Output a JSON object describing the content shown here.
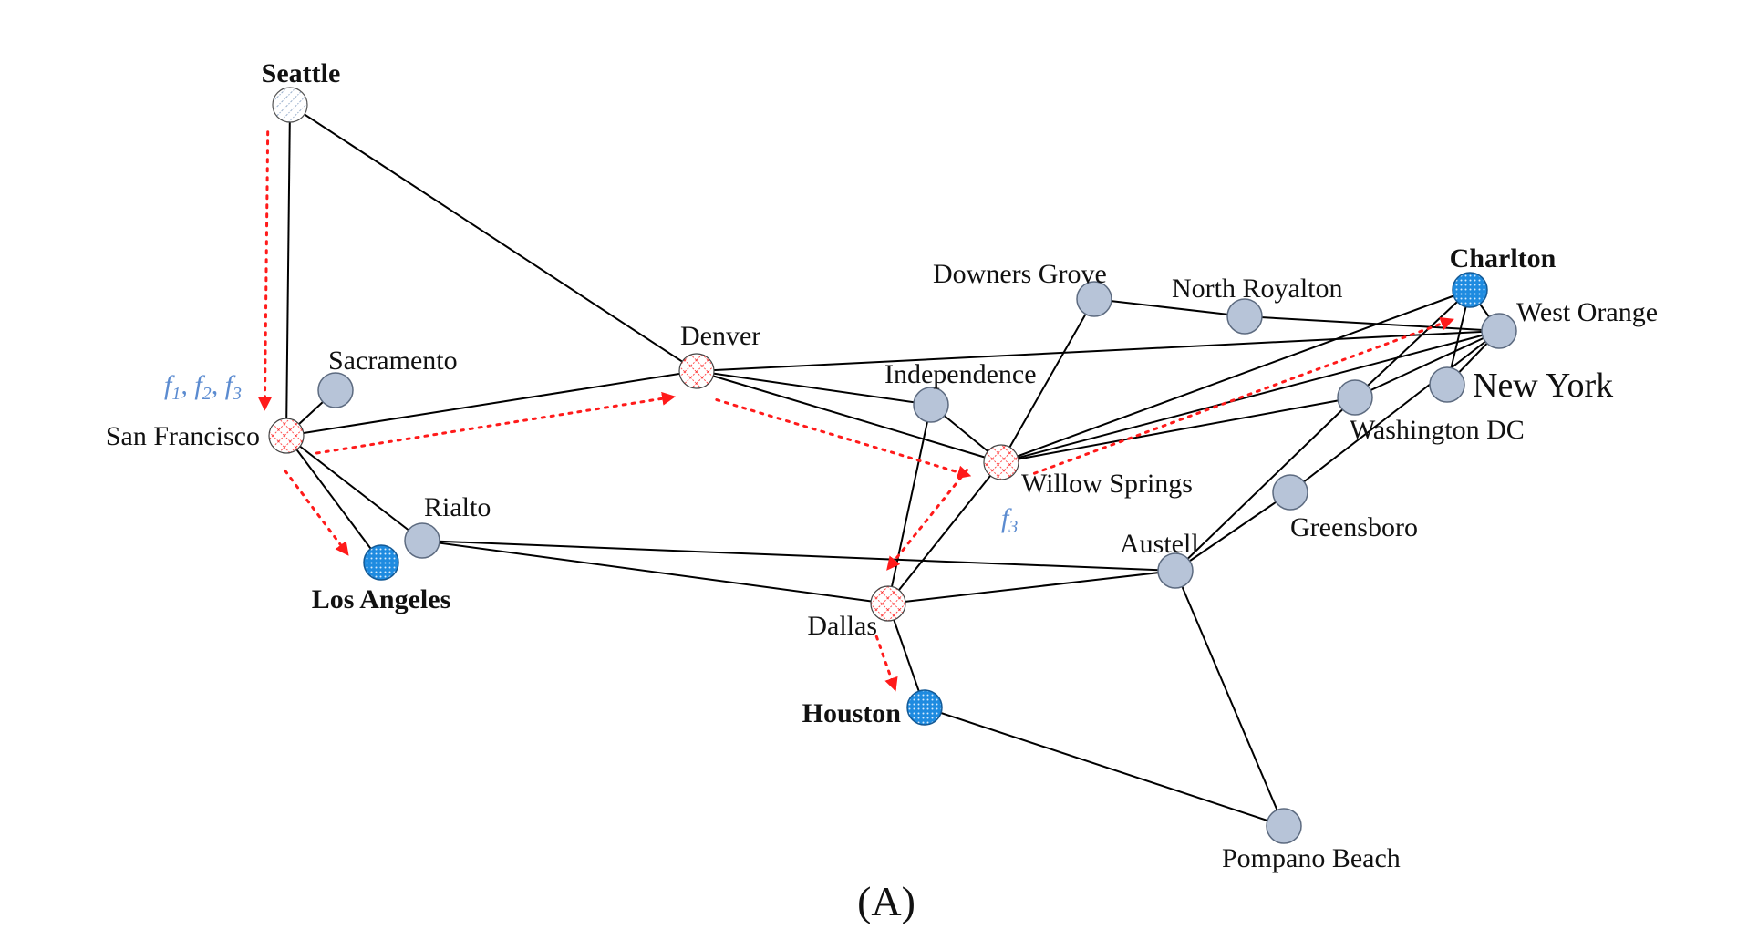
{
  "caption": "(A)",
  "colors": {
    "plain_node": "#b7c4d8",
    "source_text": "#8dc63f",
    "destination_text": "#5b8bd0",
    "destination_fill": "#1e8be0",
    "relay_stroke": "#ff2020",
    "flow_arrow": "#ff1a1a"
  },
  "flow_labels": {
    "sf": [
      "f",
      "1",
      ", f",
      "2",
      ", f",
      "3"
    ],
    "ws": [
      "f",
      "3"
    ]
  },
  "nodes": [
    {
      "id": "seattle",
      "label": "Seattle",
      "role": "source"
    },
    {
      "id": "sanfrancisco",
      "label": "San Francisco",
      "role": "relay"
    },
    {
      "id": "sacramento",
      "label": "Sacramento",
      "role": "plain"
    },
    {
      "id": "losangeles",
      "label": "Los Angeles",
      "role": "destination"
    },
    {
      "id": "rialto",
      "label": "Rialto",
      "role": "plain"
    },
    {
      "id": "denver",
      "label": "Denver",
      "role": "relay"
    },
    {
      "id": "independence",
      "label": "Independence",
      "role": "plain"
    },
    {
      "id": "dallas",
      "label": "Dallas",
      "role": "relay"
    },
    {
      "id": "houston",
      "label": "Houston",
      "role": "destination"
    },
    {
      "id": "willowsprings",
      "label": "Willow Springs",
      "role": "relay"
    },
    {
      "id": "downersgrove",
      "label": "Downers Grove",
      "role": "plain"
    },
    {
      "id": "northroyalton",
      "label": "North Royalton",
      "role": "plain"
    },
    {
      "id": "charlton",
      "label": "Charlton",
      "role": "destination"
    },
    {
      "id": "westorange",
      "label": "West Orange",
      "role": "plain"
    },
    {
      "id": "newyork",
      "label": "New York",
      "role": "plain"
    },
    {
      "id": "washingtondc",
      "label": "Washington DC",
      "role": "plain"
    },
    {
      "id": "greensboro",
      "label": "Greensboro",
      "role": "plain"
    },
    {
      "id": "austell",
      "label": "Austell",
      "role": "plain"
    },
    {
      "id": "pompanobeach",
      "label": "Pompano Beach",
      "role": "plain"
    }
  ],
  "edges": [
    [
      "seattle",
      "sanfrancisco"
    ],
    [
      "seattle",
      "denver"
    ],
    [
      "sanfrancisco",
      "sacramento"
    ],
    [
      "sanfrancisco",
      "losangeles"
    ],
    [
      "sanfrancisco",
      "rialto"
    ],
    [
      "sanfrancisco",
      "denver"
    ],
    [
      "rialto",
      "austell"
    ],
    [
      "rialto",
      "dallas"
    ],
    [
      "denver",
      "westorange"
    ],
    [
      "denver",
      "independence"
    ],
    [
      "denver",
      "willowsprings"
    ],
    [
      "independence",
      "willowsprings"
    ],
    [
      "independence",
      "dallas"
    ],
    [
      "downersgrove",
      "northroyalton"
    ],
    [
      "downersgrove",
      "willowsprings"
    ],
    [
      "northroyalton",
      "westorange"
    ],
    [
      "willowsprings",
      "dallas"
    ],
    [
      "willowsprings",
      "charlton"
    ],
    [
      "willowsprings",
      "westorange"
    ],
    [
      "willowsprings",
      "washingtondc"
    ],
    [
      "dallas",
      "austell"
    ],
    [
      "dallas",
      "houston"
    ],
    [
      "houston",
      "pompanobeach"
    ],
    [
      "austell",
      "pompanobeach"
    ],
    [
      "austell",
      "washingtondc"
    ],
    [
      "austell",
      "greensboro"
    ],
    [
      "greensboro",
      "westorange"
    ],
    [
      "charlton",
      "westorange"
    ],
    [
      "charlton",
      "newyork"
    ],
    [
      "charlton",
      "washingtondc"
    ],
    [
      "westorange",
      "newyork"
    ],
    [
      "westorange",
      "washingtondc"
    ]
  ],
  "flows": [
    [
      "seattle",
      "sanfrancisco"
    ],
    [
      "sanfrancisco",
      "denver"
    ],
    [
      "sanfrancisco",
      "losangeles"
    ],
    [
      "denver",
      "willowsprings"
    ],
    [
      "willowsprings",
      "charlton"
    ],
    [
      "willowsprings",
      "dallas"
    ],
    [
      "dallas",
      "houston"
    ]
  ]
}
